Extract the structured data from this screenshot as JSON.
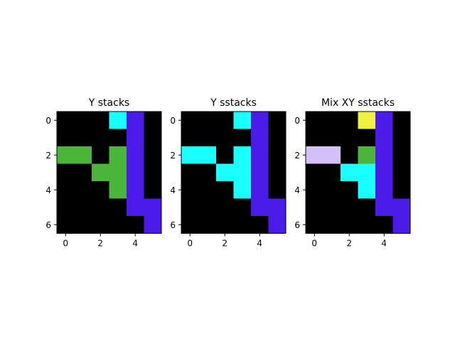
{
  "chart_data": [
    {
      "type": "heatmap",
      "title": "Y stacks",
      "xticks": [
        0,
        2,
        4
      ],
      "yticks": [
        0,
        2,
        4,
        6
      ],
      "rows": 7,
      "cols": 6,
      "grid": [
        [
          "#000000",
          "#000000",
          "#000000",
          "#19ffff",
          "#4a1ae8",
          "#000000"
        ],
        [
          "#000000",
          "#000000",
          "#000000",
          "#000000",
          "#4a1ae8",
          "#000000"
        ],
        [
          "#4ab53a",
          "#4ab53a",
          "#000000",
          "#4ab53a",
          "#4a1ae8",
          "#000000"
        ],
        [
          "#000000",
          "#000000",
          "#4ab53a",
          "#4ab53a",
          "#4a1ae8",
          "#000000"
        ],
        [
          "#000000",
          "#000000",
          "#000000",
          "#4ab53a",
          "#4a1ae8",
          "#000000"
        ],
        [
          "#000000",
          "#000000",
          "#000000",
          "#000000",
          "#4a1ae8",
          "#4a1ae8"
        ],
        [
          "#000000",
          "#000000",
          "#000000",
          "#000000",
          "#000000",
          "#4a1ae8"
        ]
      ]
    },
    {
      "type": "heatmap",
      "title": "Y sstacks",
      "xticks": [
        0,
        2,
        4
      ],
      "yticks": [
        0,
        2,
        4,
        6
      ],
      "rows": 7,
      "cols": 6,
      "grid": [
        [
          "#000000",
          "#000000",
          "#000000",
          "#19ffff",
          "#4a1ae8",
          "#000000"
        ],
        [
          "#000000",
          "#000000",
          "#000000",
          "#000000",
          "#4a1ae8",
          "#000000"
        ],
        [
          "#19ffff",
          "#19ffff",
          "#000000",
          "#19ffff",
          "#4a1ae8",
          "#000000"
        ],
        [
          "#000000",
          "#000000",
          "#19ffff",
          "#19ffff",
          "#4a1ae8",
          "#000000"
        ],
        [
          "#000000",
          "#000000",
          "#000000",
          "#19ffff",
          "#4a1ae8",
          "#000000"
        ],
        [
          "#000000",
          "#000000",
          "#000000",
          "#000000",
          "#4a1ae8",
          "#4a1ae8"
        ],
        [
          "#000000",
          "#000000",
          "#000000",
          "#000000",
          "#000000",
          "#4a1ae8"
        ]
      ]
    },
    {
      "type": "heatmap",
      "title": "Mix XY sstacks",
      "xticks": [
        0,
        2,
        4
      ],
      "yticks": [
        0,
        2,
        4,
        6
      ],
      "rows": 7,
      "cols": 6,
      "grid": [
        [
          "#000000",
          "#000000",
          "#000000",
          "#f0f040",
          "#4a1ae8",
          "#000000"
        ],
        [
          "#000000",
          "#000000",
          "#000000",
          "#000000",
          "#4a1ae8",
          "#000000"
        ],
        [
          "#d6c0f8",
          "#d6c0f8",
          "#000000",
          "#4ab53a",
          "#4a1ae8",
          "#000000"
        ],
        [
          "#000000",
          "#000000",
          "#19ffff",
          "#19ffff",
          "#4a1ae8",
          "#000000"
        ],
        [
          "#000000",
          "#000000",
          "#000000",
          "#19ffff",
          "#4a1ae8",
          "#000000"
        ],
        [
          "#000000",
          "#000000",
          "#000000",
          "#000000",
          "#4a1ae8",
          "#4a1ae8"
        ],
        [
          "#000000",
          "#000000",
          "#000000",
          "#000000",
          "#000000",
          "#4a1ae8"
        ]
      ]
    }
  ]
}
